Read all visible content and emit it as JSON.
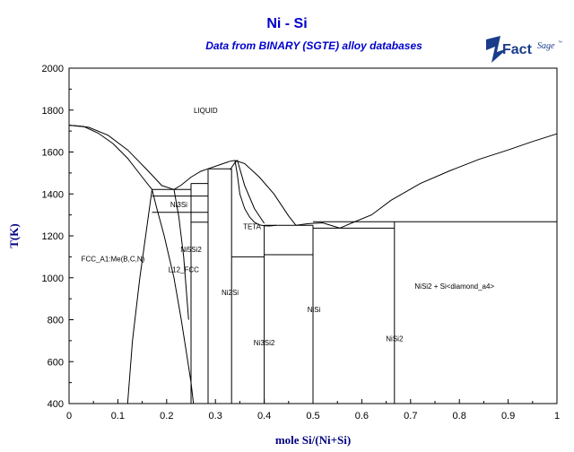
{
  "page": {
    "title": "Ni - Si",
    "subtitle": "Data from BINARY (SGTE) alloy databases",
    "logo": {
      "brand_main": "Fact",
      "brand_sup": "Sage",
      "tm": "™",
      "color": "#1a3c8a"
    }
  },
  "chart_data": {
    "type": "line",
    "title": "Ni - Si",
    "subtitle": "Data from BINARY (SGTE) alloy databases",
    "xlabel": "mole Si/(Ni+Si)",
    "ylabel": "T(K)",
    "xlim": [
      0,
      1
    ],
    "ylim": [
      400,
      2000
    ],
    "xticks": [
      0,
      0.1,
      0.2,
      0.3,
      0.4,
      0.5,
      0.6,
      0.7,
      0.8,
      0.9,
      1
    ],
    "xtick_labels": [
      "0",
      "0.1",
      "0.2",
      "0.3",
      "0.4",
      "0.5",
      "0.6",
      "0.7",
      "0.8",
      "0.9",
      "1"
    ],
    "yticks": [
      400,
      600,
      800,
      1000,
      1200,
      1400,
      1600,
      1800,
      2000
    ],
    "ytick_labels": [
      "400",
      "600",
      "800",
      "1000",
      "1200",
      "1400",
      "1600",
      "1800",
      "2000"
    ],
    "grid": false,
    "line_color": "#000000",
    "axis_label_color": "#000080",
    "title_color": "#0000cc",
    "lines": [
      {
        "x": [
          0,
          0.03,
          0.06,
          0.09,
          0.12,
          0.15,
          0.17
        ],
        "y": [
          1728,
          1722,
          1690,
          1640,
          1570,
          1480,
          1421
        ]
      },
      {
        "x": [
          0,
          0.04,
          0.08,
          0.12,
          0.16,
          0.19,
          0.215
        ],
        "y": [
          1728,
          1718,
          1680,
          1610,
          1515,
          1440,
          1421
        ]
      },
      {
        "x": [
          0.215,
          0.23,
          0.25,
          0.27,
          0.285
        ],
        "y": [
          1421,
          1442,
          1480,
          1508,
          1520
        ]
      },
      {
        "x": [
          0.285,
          0.31,
          0.33,
          0.34
        ],
        "y": [
          1520,
          1540,
          1556,
          1560
        ]
      },
      {
        "x": [
          0.34,
          0.36,
          0.39,
          0.42,
          0.45,
          0.465
        ],
        "y": [
          1560,
          1545,
          1480,
          1400,
          1295,
          1250
        ]
      },
      {
        "x": [
          0.465,
          0.49,
          0.52,
          0.555
        ],
        "y": [
          1250,
          1258,
          1262,
          1237
        ]
      },
      {
        "x": [
          0.555,
          0.58,
          0.62,
          0.66,
          0.72,
          0.78,
          0.84,
          0.9,
          0.95,
          1
        ],
        "y": [
          1237,
          1262,
          1300,
          1370,
          1450,
          1510,
          1565,
          1610,
          1650,
          1687
        ]
      },
      {
        "x": [
          0.34,
          0.345,
          0.35,
          0.36,
          0.37,
          0.38,
          0.39,
          0.4,
          0.41,
          0.425
        ],
        "y": [
          1560,
          1490,
          1400,
          1330,
          1290,
          1265,
          1252,
          1248,
          1247,
          1250
        ]
      },
      {
        "x": [
          0.33,
          0.34,
          0.345,
          0.36,
          0.38,
          0.4
        ],
        "y": [
          1515,
          1550,
          1560,
          1440,
          1330,
          1260
        ]
      },
      {
        "x": [
          0.12,
          0.13,
          0.145,
          0.16,
          0.17
        ],
        "y": [
          400,
          700,
          1000,
          1250,
          1421
        ]
      },
      {
        "x": [
          0.17,
          0.18,
          0.195,
          0.205,
          0.215,
          0.23,
          0.24,
          0.25,
          0.255
        ],
        "y": [
          1421,
          1330,
          1200,
          1100,
          1000,
          800,
          650,
          500,
          400
        ]
      },
      {
        "x": [
          0.215,
          0.225,
          0.235,
          0.245
        ],
        "y": [
          1421,
          1290,
          1100,
          800
        ]
      },
      {
        "x": [
          0.17,
          0.25
        ],
        "y": [
          1421,
          1421
        ]
      },
      {
        "x": [
          0.17,
          0.285
        ],
        "y": [
          1390,
          1390
        ]
      },
      {
        "x": [
          0.17,
          0.285
        ],
        "y": [
          1312,
          1312
        ]
      },
      {
        "x": [
          0.25,
          0.285
        ],
        "y": [
          1450,
          1450
        ]
      },
      {
        "x": [
          0.25,
          0.285
        ],
        "y": [
          1265,
          1265
        ]
      },
      {
        "x": [
          0.285,
          0.333
        ],
        "y": [
          1520,
          1520
        ]
      },
      {
        "x": [
          0.333,
          0.4
        ],
        "y": [
          1100,
          1100
        ]
      },
      {
        "x": [
          0.4,
          0.5
        ],
        "y": [
          1250,
          1250
        ]
      },
      {
        "x": [
          0.4,
          0.5
        ],
        "y": [
          1110,
          1110
        ]
      },
      {
        "x": [
          0.5,
          0.667
        ],
        "y": [
          1237,
          1237
        ]
      },
      {
        "x": [
          0.5,
          1
        ],
        "y": [
          1267,
          1267
        ]
      },
      {
        "x": [
          0.25,
          0.25
        ],
        "y": [
          400,
          1450
        ]
      },
      {
        "x": [
          0.285,
          0.285
        ],
        "y": [
          400,
          1520
        ]
      },
      {
        "x": [
          0.333,
          0.333
        ],
        "y": [
          400,
          1520
        ]
      },
      {
        "x": [
          0.4,
          0.4
        ],
        "y": [
          400,
          1250
        ]
      },
      {
        "x": [
          0.5,
          0.5
        ],
        "y": [
          400,
          1250
        ]
      },
      {
        "x": [
          0.667,
          0.667
        ],
        "y": [
          400,
          1267
        ]
      }
    ],
    "annotations": [
      {
        "text": "LIQUID",
        "x": 0.28,
        "y": 1800
      },
      {
        "text": "Ni3Si",
        "x": 0.225,
        "y": 1350
      },
      {
        "text": "Ni5Si2",
        "x": 0.25,
        "y": 1135
      },
      {
        "text": "TETA",
        "x": 0.375,
        "y": 1245
      },
      {
        "text": "FCC_A1:Me(B,C,N)",
        "x": 0.09,
        "y": 1090
      },
      {
        "text": "L12_FCC",
        "x": 0.235,
        "y": 1040
      },
      {
        "text": "Ni2Si",
        "x": 0.33,
        "y": 930
      },
      {
        "text": "NiSi",
        "x": 0.502,
        "y": 850
      },
      {
        "text": "Ni3Si2",
        "x": 0.4,
        "y": 690
      },
      {
        "text": "NiSi2",
        "x": 0.667,
        "y": 710
      },
      {
        "text": "NiSi2 + Si<diamond_a4>",
        "x": 0.79,
        "y": 960
      }
    ]
  }
}
